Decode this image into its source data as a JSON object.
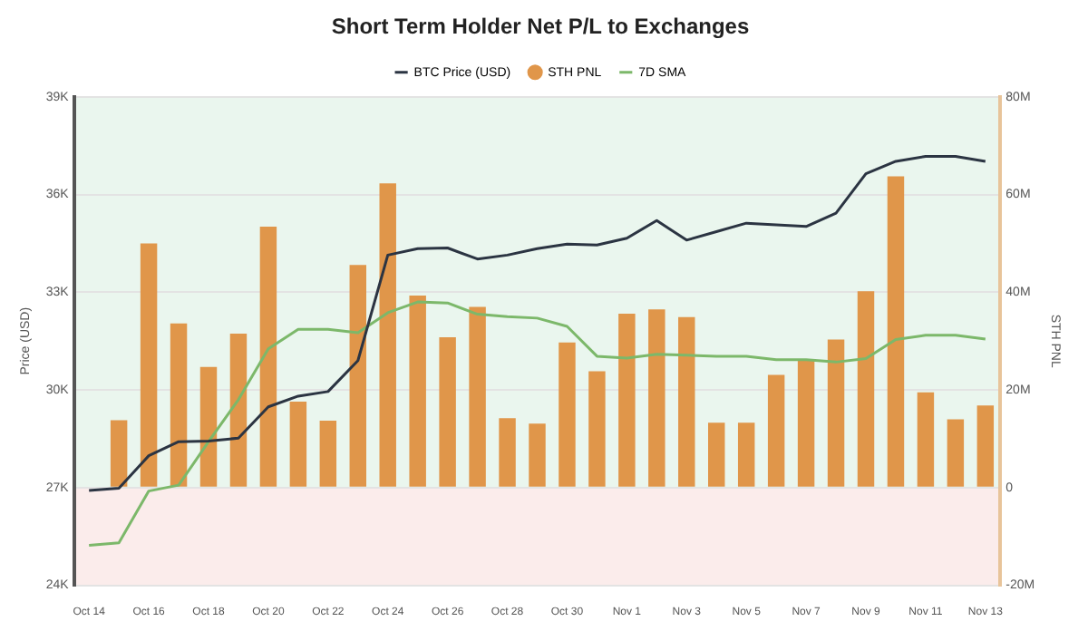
{
  "chart_data": {
    "type": "bar",
    "title": "Short Term Holder Net P/L to Exchanges",
    "ylabel": "Price (USD)",
    "y2label": "STH PNL",
    "categories": [
      "Oct 14",
      null,
      "Oct 16",
      null,
      "Oct 18",
      null,
      "Oct 20",
      null,
      "Oct 22",
      null,
      "Oct 24",
      null,
      "Oct 26",
      null,
      "Oct 28",
      null,
      "Oct 30",
      null,
      "Nov 1",
      null,
      "Nov 3",
      null,
      "Nov 5",
      null,
      "Nov 7",
      null,
      "Nov 9",
      null,
      "Nov 11",
      null,
      "Nov 13"
    ],
    "series": [
      {
        "name": "BTC Price (USD)",
        "type": "line",
        "axis": "y",
        "color": "#2b3442",
        "values": [
          26910,
          26980,
          27980,
          28410,
          28430,
          28520,
          29480,
          29810,
          29950,
          30900,
          34140,
          34340,
          34360,
          34020,
          34140,
          34340,
          34480,
          34450,
          34660,
          35200,
          34600,
          34860,
          35120,
          35070,
          35020,
          35430,
          36640,
          37020,
          37170,
          37170,
          37020
        ]
      },
      {
        "name": "STH PNL",
        "axis": "y2",
        "color": "#e0964a",
        "values": [
          null,
          13.8,
          50,
          33.6,
          24.7,
          31.5,
          53.4,
          17.6,
          13.7,
          45.6,
          62.3,
          39.3,
          30.8,
          37,
          14.2,
          13.1,
          29.7,
          23.8,
          35.6,
          36.5,
          34.9,
          13.3,
          13.3,
          23.1,
          26.3,
          30.3,
          40.2,
          63.7,
          19.5,
          14,
          16.8
        ]
      },
      {
        "name": "7D SMA",
        "type": "line",
        "axis": "y2",
        "color": "#7cb86a",
        "values": [
          -11.8,
          -11.3,
          -0.7,
          0.5,
          9.4,
          18,
          28.4,
          32.4,
          32.4,
          31.7,
          35.8,
          38,
          37.8,
          35.5,
          35,
          34.7,
          33,
          26.9,
          26.5,
          27.3,
          27.1,
          26.9,
          26.9,
          26.2,
          26.2,
          25.7,
          26.4,
          30.3,
          31.2,
          31.2,
          30.4
        ]
      }
    ],
    "ylim": [
      24000,
      39000
    ],
    "yticks": [
      {
        "value": 24000,
        "label": "24K"
      },
      {
        "value": 27000,
        "label": "27K"
      },
      {
        "value": 30000,
        "label": "30K"
      },
      {
        "value": 33000,
        "label": "33K"
      },
      {
        "value": 36000,
        "label": "36K"
      },
      {
        "value": 39000,
        "label": "39K"
      }
    ],
    "y2lim": [
      -20,
      80
    ],
    "y2ticks": [
      {
        "value": -20,
        "label": "-20M"
      },
      0,
      {
        "value": 20,
        "label": "20M"
      },
      {
        "value": 40,
        "label": "40M"
      },
      {
        "value": 60,
        "label": "60M"
      },
      {
        "value": 80,
        "label": "80M"
      }
    ],
    "bands": [
      {
        "axis": "y",
        "from": 27000,
        "to": 39000,
        "color": "#eaf6ee"
      },
      {
        "axis": "y",
        "from": 24000,
        "to": 27000,
        "color": "#fbeceb"
      }
    ],
    "grid": "y",
    "legend": "top",
    "marker": "none",
    "line_style": "solid"
  }
}
